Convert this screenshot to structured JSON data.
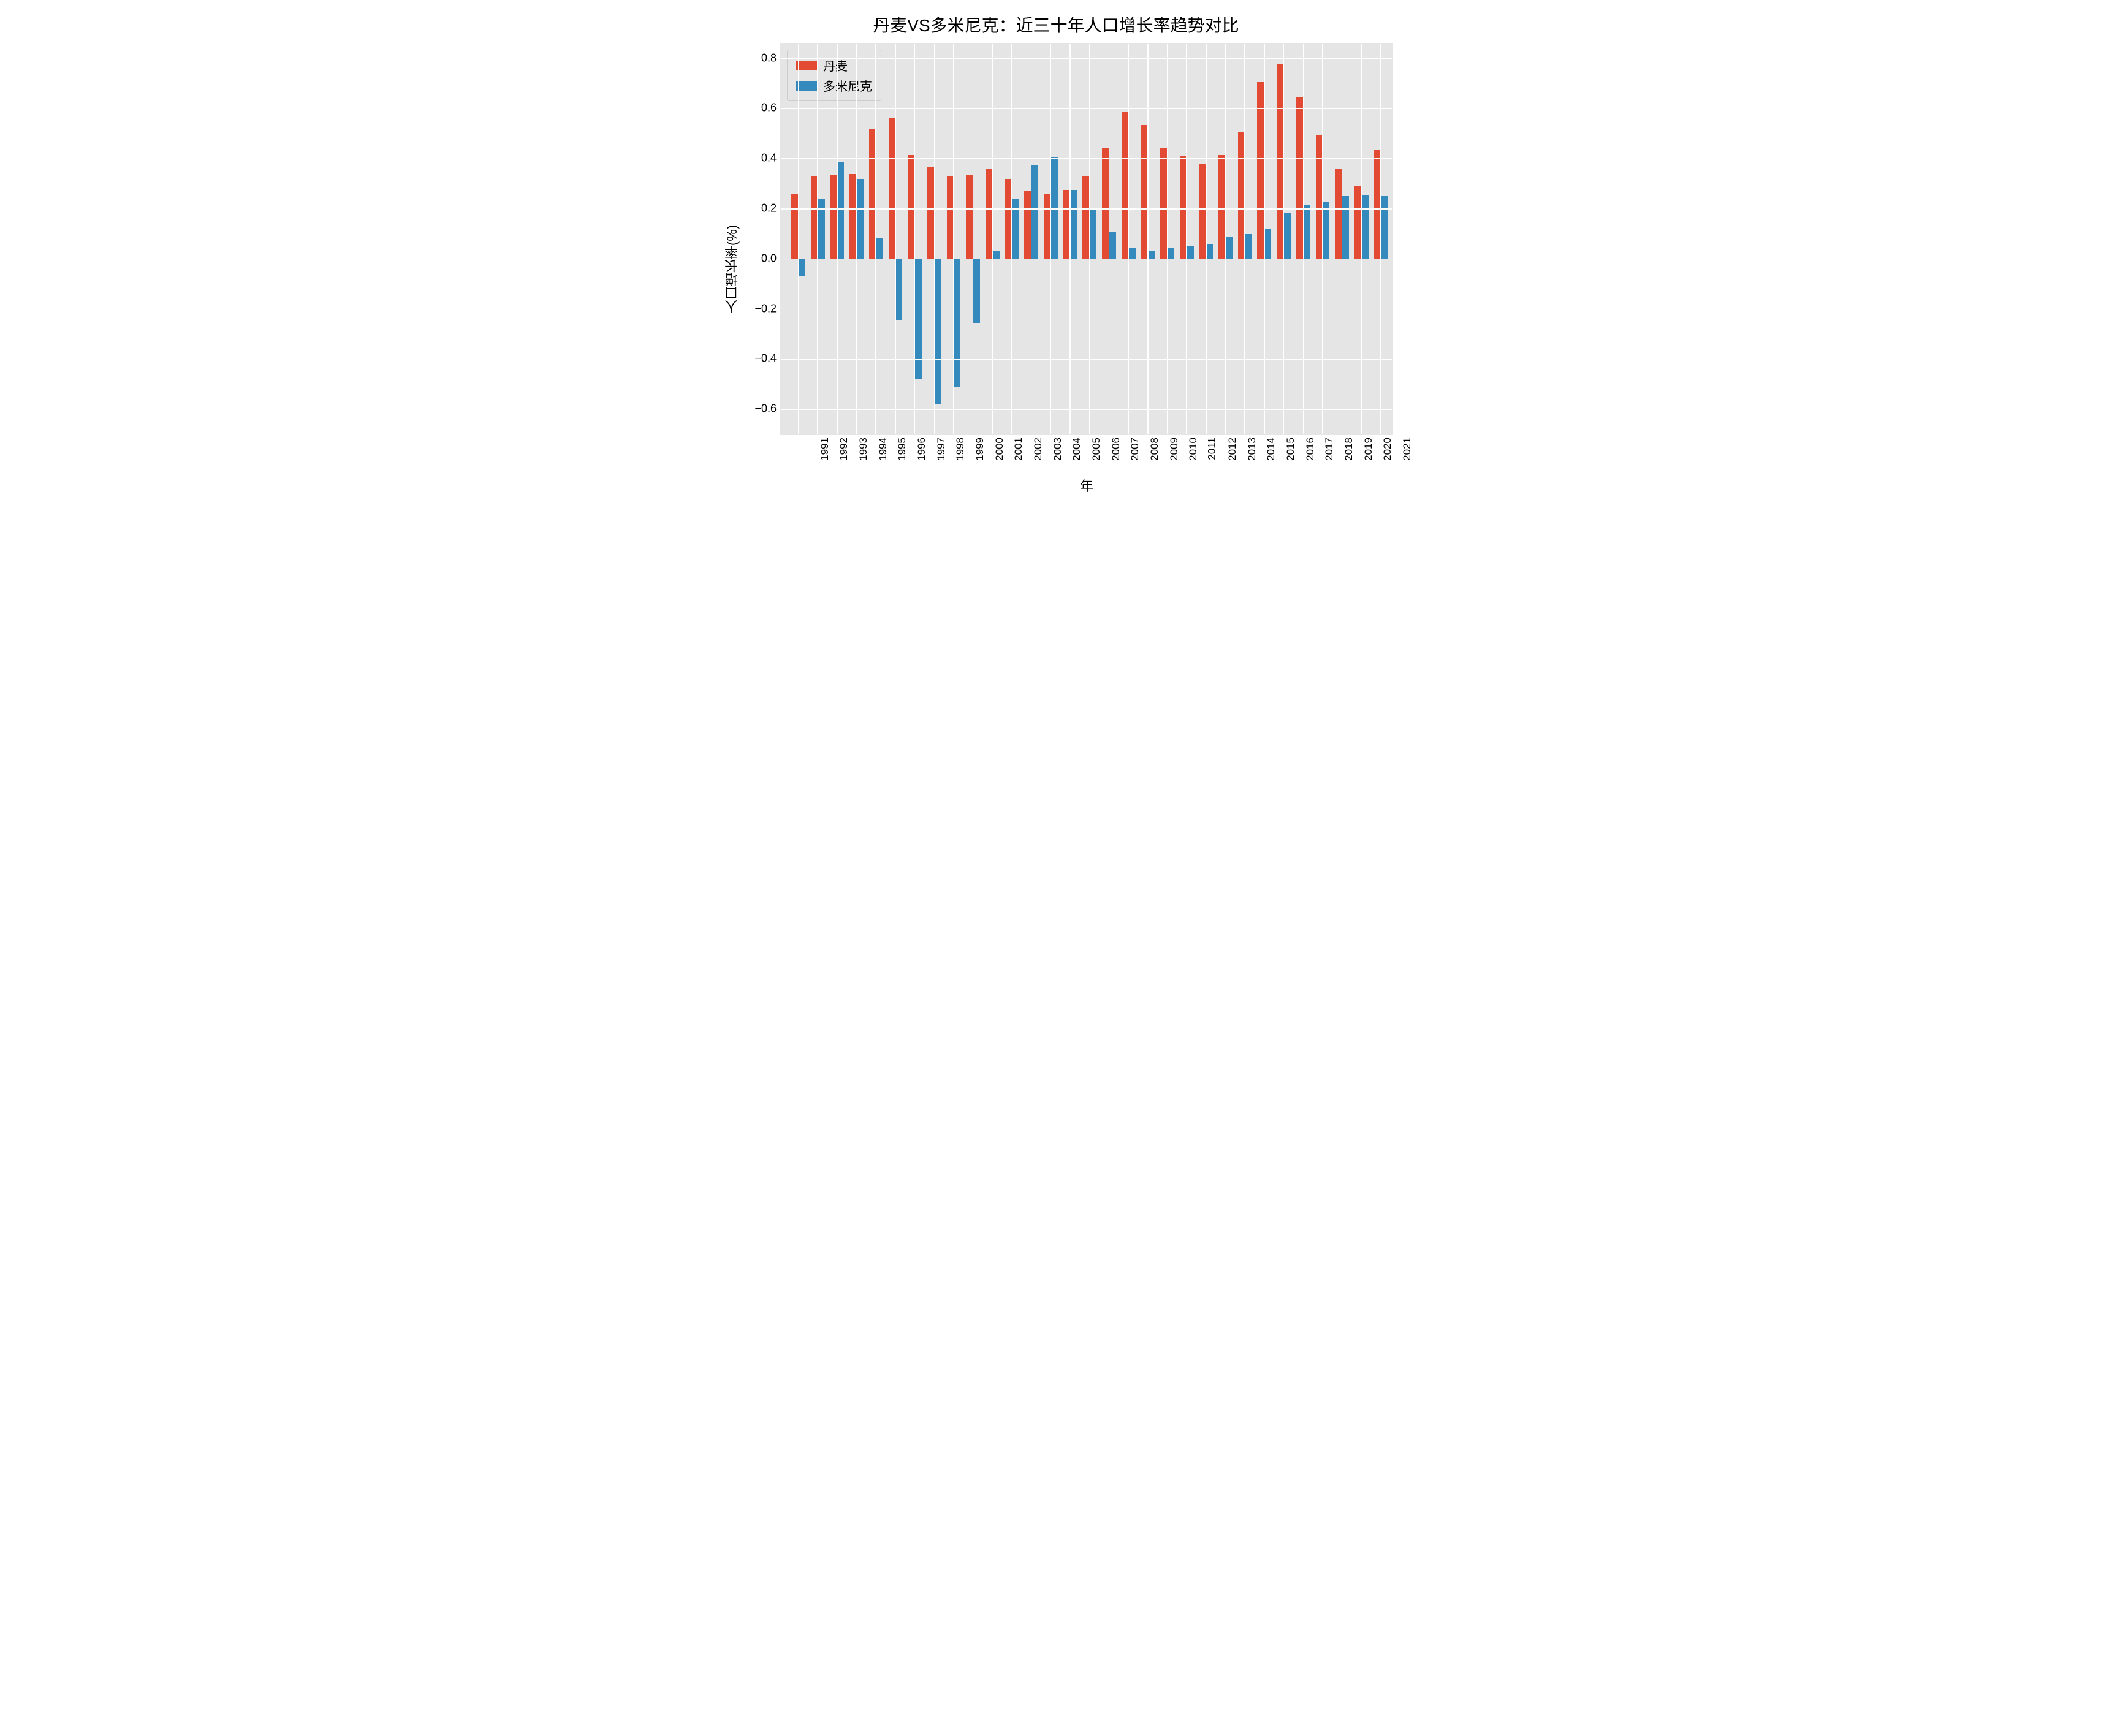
{
  "chart": {
    "type": "bar",
    "title": "丹麦VS多米尼克：近三十年人口增长率趋势对比",
    "title_fontsize": 28,
    "xlabel": "年",
    "ylabel": "人口增长率(%)",
    "label_fontsize": 22,
    "tick_fontsize": 18,
    "background_color": "#e5e5e5",
    "grid_color": "#ffffff",
    "page_background": "#ffffff",
    "ylim": [
      -0.7,
      0.86
    ],
    "yticks": [
      -0.6,
      -0.4,
      -0.2,
      0.0,
      0.2,
      0.4,
      0.6,
      0.8
    ],
    "ytick_labels": [
      "−0.6",
      "−0.4",
      "−0.2",
      "0.0",
      "0.2",
      "0.4",
      "0.6",
      "0.8"
    ],
    "categories": [
      "1991",
      "1992",
      "1993",
      "1994",
      "1995",
      "1996",
      "1997",
      "1998",
      "1999",
      "2000",
      "2001",
      "2002",
      "2003",
      "2004",
      "2005",
      "2006",
      "2007",
      "2008",
      "2009",
      "2010",
      "2011",
      "2012",
      "2013",
      "2014",
      "2015",
      "2016",
      "2017",
      "2018",
      "2019",
      "2020",
      "2021"
    ],
    "series": [
      {
        "name": "丹麦",
        "color": "#e24a33",
        "values": [
          0.26,
          0.33,
          0.335,
          0.34,
          0.52,
          0.565,
          0.415,
          0.365,
          0.33,
          0.335,
          0.36,
          0.32,
          0.27,
          0.26,
          0.275,
          0.33,
          0.445,
          0.585,
          0.535,
          0.445,
          0.41,
          0.38,
          0.415,
          0.505,
          0.705,
          0.78,
          0.645,
          0.495,
          0.36,
          0.29,
          0.435
        ]
      },
      {
        "name": "多米尼克",
        "color": "#348abd",
        "values": [
          -0.07,
          0.24,
          0.385,
          0.32,
          0.085,
          -0.245,
          -0.48,
          -0.58,
          -0.51,
          -0.255,
          0.03,
          0.24,
          0.375,
          0.405,
          0.275,
          0.195,
          0.11,
          0.045,
          0.03,
          0.045,
          0.05,
          0.06,
          0.09,
          0.1,
          0.12,
          0.185,
          0.215,
          0.23,
          0.25,
          0.255,
          0.25
        ]
      }
    ],
    "legend": {
      "position": "upper-left",
      "border_color": "#cccccc",
      "background": "#e5e5e5",
      "fontsize": 20
    },
    "bar_width_ratio": 0.36
  }
}
